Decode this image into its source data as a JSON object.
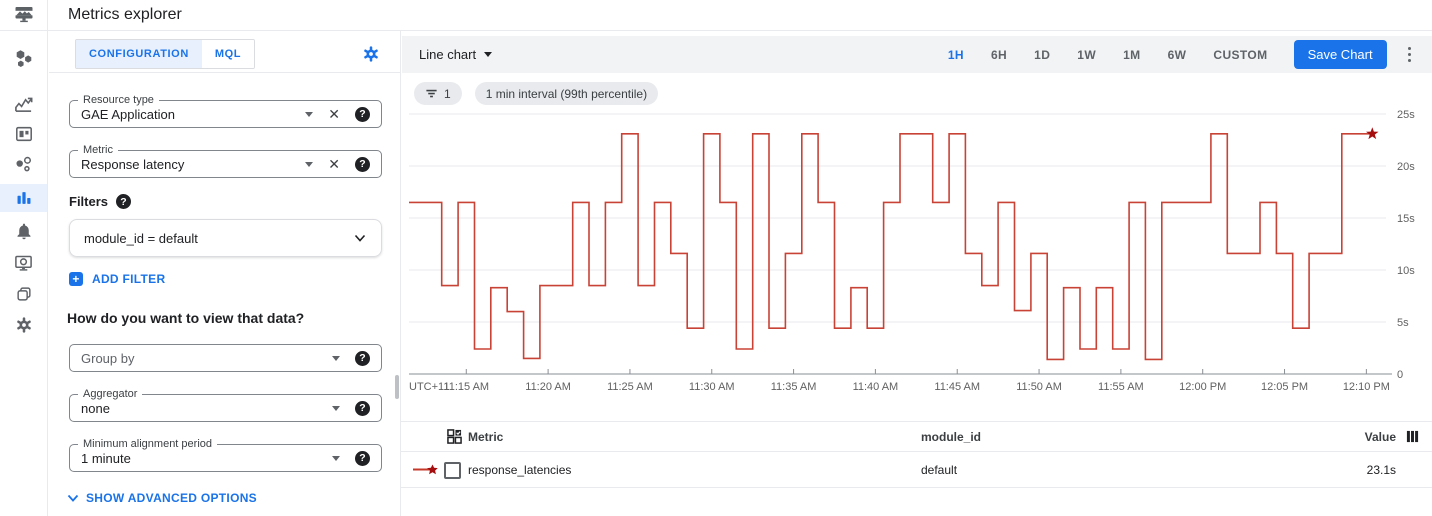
{
  "app": {
    "title": "Metrics explorer"
  },
  "nav": {
    "icons": [
      "monitoring-overview",
      "metrics",
      "dashboards",
      "services",
      "metrics-explorer",
      "alerting",
      "uptime-checks",
      "groups",
      "settings"
    ],
    "active": "metrics-explorer"
  },
  "config": {
    "tabs": [
      {
        "label": "CONFIGURATION",
        "active": true
      },
      {
        "label": "MQL",
        "active": false
      }
    ],
    "resource_type": {
      "label": "Resource type",
      "value": "GAE Application"
    },
    "metric": {
      "label": "Metric",
      "value": "Response latency"
    },
    "filters": {
      "heading": "Filters",
      "expression": "module_id = default",
      "add_label": "ADD FILTER"
    },
    "view_heading": "How do you want to view that data?",
    "group_by": {
      "placeholder": "Group by"
    },
    "aggregator": {
      "label": "Aggregator",
      "value": "none"
    },
    "min_alignment": {
      "label": "Minimum alignment period",
      "value": "1 minute"
    },
    "advanced_label": "SHOW ADVANCED OPTIONS"
  },
  "toolbar": {
    "chart_type": "Line chart",
    "ranges": [
      "1H",
      "6H",
      "1D",
      "1W",
      "1M",
      "6W",
      "CUSTOM"
    ],
    "active_range": "1H",
    "save_label": "Save Chart"
  },
  "chips": {
    "filter_count": "1",
    "interval": "1 min interval (99th percentile)"
  },
  "chart_data": {
    "type": "line",
    "style": "step-after",
    "title": "",
    "x_prefix_label": "UTC+11",
    "x_start_time": "11:12 AM",
    "x_interval_minutes": 1,
    "x_domain": [
      11.5,
      71.2
    ],
    "x_data_end": 70.3,
    "ylim": [
      0,
      25
    ],
    "grid": true,
    "legend_position": "table-below",
    "series": [
      {
        "name": "response_latencies",
        "color": "#c5392b",
        "marker_color": "#a50e0e",
        "values": [
          16.5,
          16.5,
          8.5,
          16.5,
          2.4,
          8.3,
          6.0,
          1.5,
          8.5,
          8.5,
          16.5,
          8.5,
          16.5,
          23.1,
          8.5,
          16.5,
          11.6,
          4.4,
          23.1,
          16.5,
          2.4,
          23.1,
          4.4,
          11.6,
          23.1,
          16.5,
          4.4,
          8.3,
          4.4,
          16.5,
          23.1,
          23.1,
          16.5,
          23.1,
          11.6,
          8.5,
          16.5,
          6.1,
          11.6,
          1.4,
          8.3,
          2.4,
          8.3,
          2.4,
          16.5,
          1.4,
          16.5,
          16.5,
          16.5,
          23.1,
          11.6,
          11.6,
          16.5,
          11.6,
          4.4,
          11.6,
          11.6,
          23.1,
          23.1
        ]
      }
    ],
    "x_ticks": [
      {
        "min": 15,
        "label": "11:15 AM"
      },
      {
        "min": 20,
        "label": "11:20 AM"
      },
      {
        "min": 25,
        "label": "11:25 AM"
      },
      {
        "min": 30,
        "label": "11:30 AM"
      },
      {
        "min": 35,
        "label": "11:35 AM"
      },
      {
        "min": 40,
        "label": "11:40 AM"
      },
      {
        "min": 45,
        "label": "11:45 AM"
      },
      {
        "min": 50,
        "label": "11:50 AM"
      },
      {
        "min": 55,
        "label": "11:55 AM"
      },
      {
        "min": 60,
        "label": "12:00 PM"
      },
      {
        "min": 65,
        "label": "12:05 PM"
      },
      {
        "min": 70,
        "label": "12:10 PM"
      }
    ],
    "y_ticks": [
      {
        "v": 25,
        "label": "25s"
      },
      {
        "v": 20,
        "label": "20s"
      },
      {
        "v": 15,
        "label": "15s"
      },
      {
        "v": 10,
        "label": "10s"
      },
      {
        "v": 5,
        "label": "5s"
      },
      {
        "v": 0,
        "label": "0"
      }
    ]
  },
  "table": {
    "headers": {
      "metric": "Metric",
      "module_id": "module_id",
      "value": "Value"
    },
    "rows": [
      {
        "metric": "response_latencies",
        "module_id": "default",
        "value": "23.1s"
      }
    ]
  },
  "colors": {
    "accent": "#1a73e8",
    "line_red": "#c5392b",
    "star_red": "#a50e0e",
    "tab_active_bg": "#e8f0fe",
    "toolbar_bg": "#f1f3f4"
  }
}
